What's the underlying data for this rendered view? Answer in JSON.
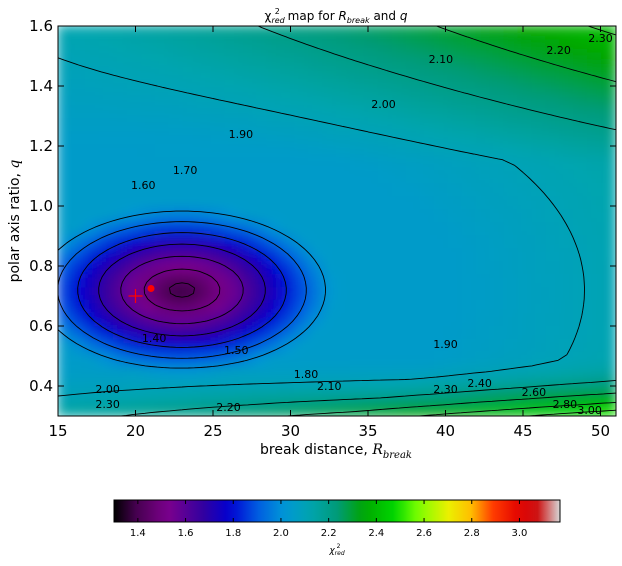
{
  "chart_data": {
    "type": "heatmap",
    "title": "χ²red map for Rbreak and q",
    "title_parts": {
      "chi": "χ",
      "sup": "2",
      "sub": "red",
      "mid": " map for ",
      "r": "R",
      "r_sub": "break",
      "and": " and ",
      "q": "q"
    },
    "xlabel": "break distance, Rbreak",
    "xlabel_parts": {
      "text": "break distance, ",
      "r": "R",
      "sub": "break"
    },
    "ylabel": "polar axis ratio, q",
    "ylabel_parts": {
      "text": "polar axis ratio, ",
      "q": "q"
    },
    "xlim": [
      15,
      51
    ],
    "ylim": [
      0.3,
      1.6
    ],
    "x_ticks": [
      15,
      20,
      25,
      30,
      35,
      40,
      45,
      50
    ],
    "y_ticks": [
      0.4,
      0.6,
      0.8,
      1.0,
      1.2,
      1.4,
      1.6
    ],
    "colorbar": {
      "range": [
        1.3,
        3.17
      ],
      "ticks": [
        1.4,
        1.6,
        1.8,
        2.0,
        2.2,
        2.4,
        2.6,
        2.8,
        3.0
      ],
      "label_parts": {
        "chi": "χ",
        "sup": "2",
        "sub": "red"
      },
      "colormap": "nipy_spectral"
    },
    "contour_labels": [
      {
        "text": "1.40",
        "x": 21.2,
        "y": 0.56
      },
      {
        "text": "1.50",
        "x": 26.5,
        "y": 0.52
      },
      {
        "text": "1.60",
        "x": 20.5,
        "y": 1.07
      },
      {
        "text": "1.70",
        "x": 23.2,
        "y": 1.12
      },
      {
        "text": "1.80",
        "x": 31.0,
        "y": 0.44
      },
      {
        "text": "1.90",
        "x": 26.8,
        "y": 1.24
      },
      {
        "text": "1.90",
        "x": 40.0,
        "y": 0.54
      },
      {
        "text": "2.00",
        "x": 36.0,
        "y": 1.34
      },
      {
        "text": "2.00",
        "x": 18.2,
        "y": 0.39
      },
      {
        "text": "2.10",
        "x": 32.5,
        "y": 0.4
      },
      {
        "text": "2.10",
        "x": 39.7,
        "y": 1.49
      },
      {
        "text": "2.20",
        "x": 47.3,
        "y": 1.52
      },
      {
        "text": "2.20",
        "x": 26.0,
        "y": 0.33
      },
      {
        "text": "2.30",
        "x": 50.0,
        "y": 1.56
      },
      {
        "text": "2.30",
        "x": 18.2,
        "y": 0.34
      },
      {
        "text": "2.30",
        "x": 40.0,
        "y": 0.39
      },
      {
        "text": "2.40",
        "x": 42.2,
        "y": 0.41
      },
      {
        "text": "2.60",
        "x": 45.7,
        "y": 0.38
      },
      {
        "text": "2.80",
        "x": 47.7,
        "y": 0.34
      },
      {
        "text": "3.00",
        "x": 49.3,
        "y": 0.32
      }
    ],
    "best_fit_marker": {
      "x": 21.0,
      "y": 0.725,
      "marker": "dot",
      "color": "#ff0000"
    },
    "reference_marker": {
      "x": 20.0,
      "y": 0.7,
      "marker": "plus",
      "color": "#ff0000"
    },
    "grid": false
  }
}
